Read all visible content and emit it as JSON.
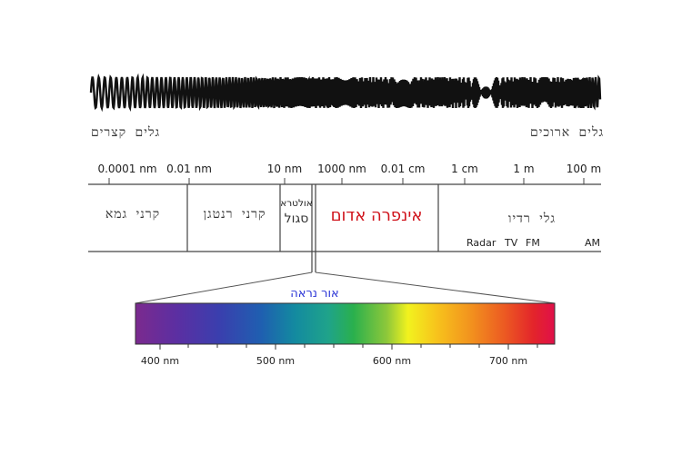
{
  "wave": {
    "short_label": "גלים קצרים",
    "long_label": "גלים ארוכים"
  },
  "scale": {
    "ticks": [
      "0.0001 nm",
      "0.01 nm",
      "10 nm",
      "1000 nm",
      "0.01 cm",
      "1 cm",
      "1 m",
      "100 m"
    ]
  },
  "bands": {
    "gamma": "קרני גמא",
    "xray": "קרני רנטגן",
    "uv_line1": "אולטרא",
    "uv_line2": "סגול",
    "infrared": "אינפרה אדום",
    "radio": "גלי רדיו",
    "radio_subs": [
      "Radar",
      "TV",
      "FM",
      "AM"
    ]
  },
  "visible": {
    "label": "אור נראה",
    "ticks": [
      "400 nm",
      "500 nm",
      "600 nm",
      "700 nm"
    ]
  },
  "colors": {
    "infrared_text": "#d0141c",
    "visible_text": "#2b35d6",
    "spectrum": [
      "#7b2a8e",
      "#5b2fa2",
      "#3a3fae",
      "#1f5fb0",
      "#138aa0",
      "#1fa38a",
      "#2ab04d",
      "#8ec83a",
      "#f2f21e",
      "#f7c21c",
      "#f2921e",
      "#ec5a22",
      "#e3242b",
      "#e0104a"
    ]
  }
}
